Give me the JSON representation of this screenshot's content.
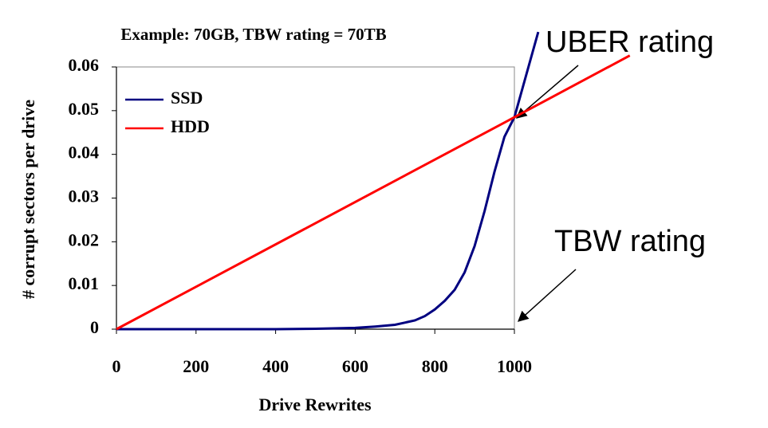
{
  "chart_data": {
    "type": "line",
    "title": "Example: 70GB, TBW rating = 70TB",
    "xlabel": "Drive Rewrites",
    "ylabel": "# corrupt sectors per drive",
    "xlim": [
      0,
      1000
    ],
    "ylim": [
      0,
      0.06
    ],
    "xticks": [
      0,
      200,
      400,
      600,
      800,
      1000
    ],
    "yticks": [
      0,
      0.01,
      0.02,
      0.03,
      0.04,
      0.05,
      0.06
    ],
    "legend": "upper left",
    "series": [
      {
        "name": "SSD",
        "color": "#000080",
        "x": [
          0,
          100,
          200,
          300,
          400,
          500,
          600,
          650,
          700,
          750,
          775,
          800,
          825,
          850,
          875,
          900,
          925,
          950,
          975,
          1000,
          1060
        ],
        "values": [
          0,
          0,
          0,
          0,
          0,
          0.0001,
          0.0003,
          0.0006,
          0.001,
          0.002,
          0.003,
          0.0045,
          0.0065,
          0.009,
          0.013,
          0.019,
          0.027,
          0.036,
          0.044,
          0.0485,
          0.068
        ]
      },
      {
        "name": "HDD",
        "color": "#ff0000",
        "x": [
          0,
          1000,
          1290
        ],
        "values": [
          0,
          0.0485,
          0.0626
        ]
      }
    ],
    "annotations": [
      {
        "text": "UBER rating"
      },
      {
        "text": "TBW rating"
      }
    ]
  }
}
